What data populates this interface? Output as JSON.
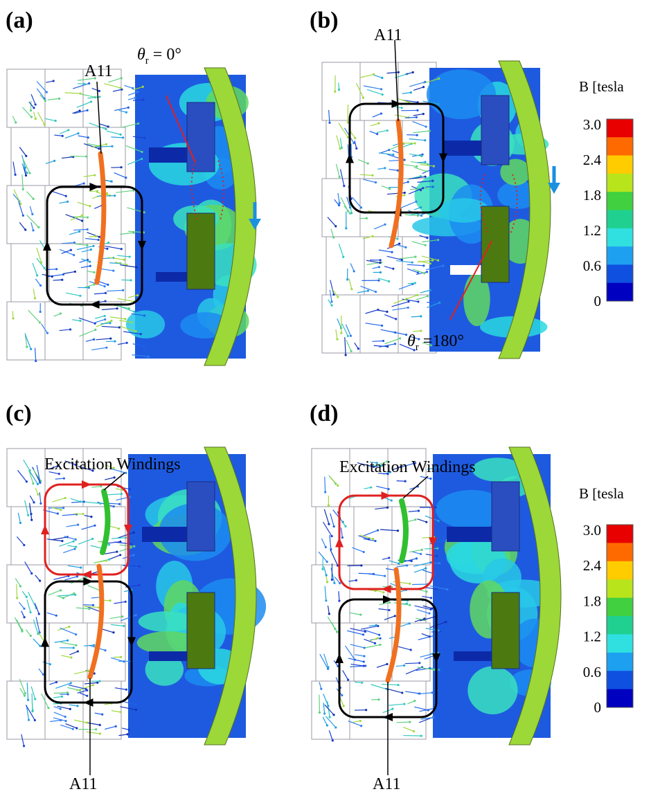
{
  "panels": [
    {
      "label": "(a)",
      "a11": "A11",
      "angle": {
        "symbol": "θ",
        "subscript": "r",
        "text": " = 0°"
      }
    },
    {
      "label": "(b)",
      "a11": "A11",
      "angle": {
        "symbol": "θ",
        "subscript": "r",
        "text": " =180°"
      }
    },
    {
      "label": "(c)",
      "windings": "Excitation Windings",
      "a11": "A11"
    },
    {
      "label": "(d)",
      "windings": "Excitation Windings",
      "a11": "A11"
    }
  ],
  "colorbars": [
    {
      "title": "B [tesla",
      "ticks": [
        "3.0",
        "2.4",
        "1.8",
        "1.2",
        "0.6",
        "0"
      ]
    },
    {
      "title": "B [tesla",
      "ticks": [
        "3.0",
        "2.4",
        "1.8",
        "1.2",
        "0.6",
        "0"
      ]
    }
  ]
}
